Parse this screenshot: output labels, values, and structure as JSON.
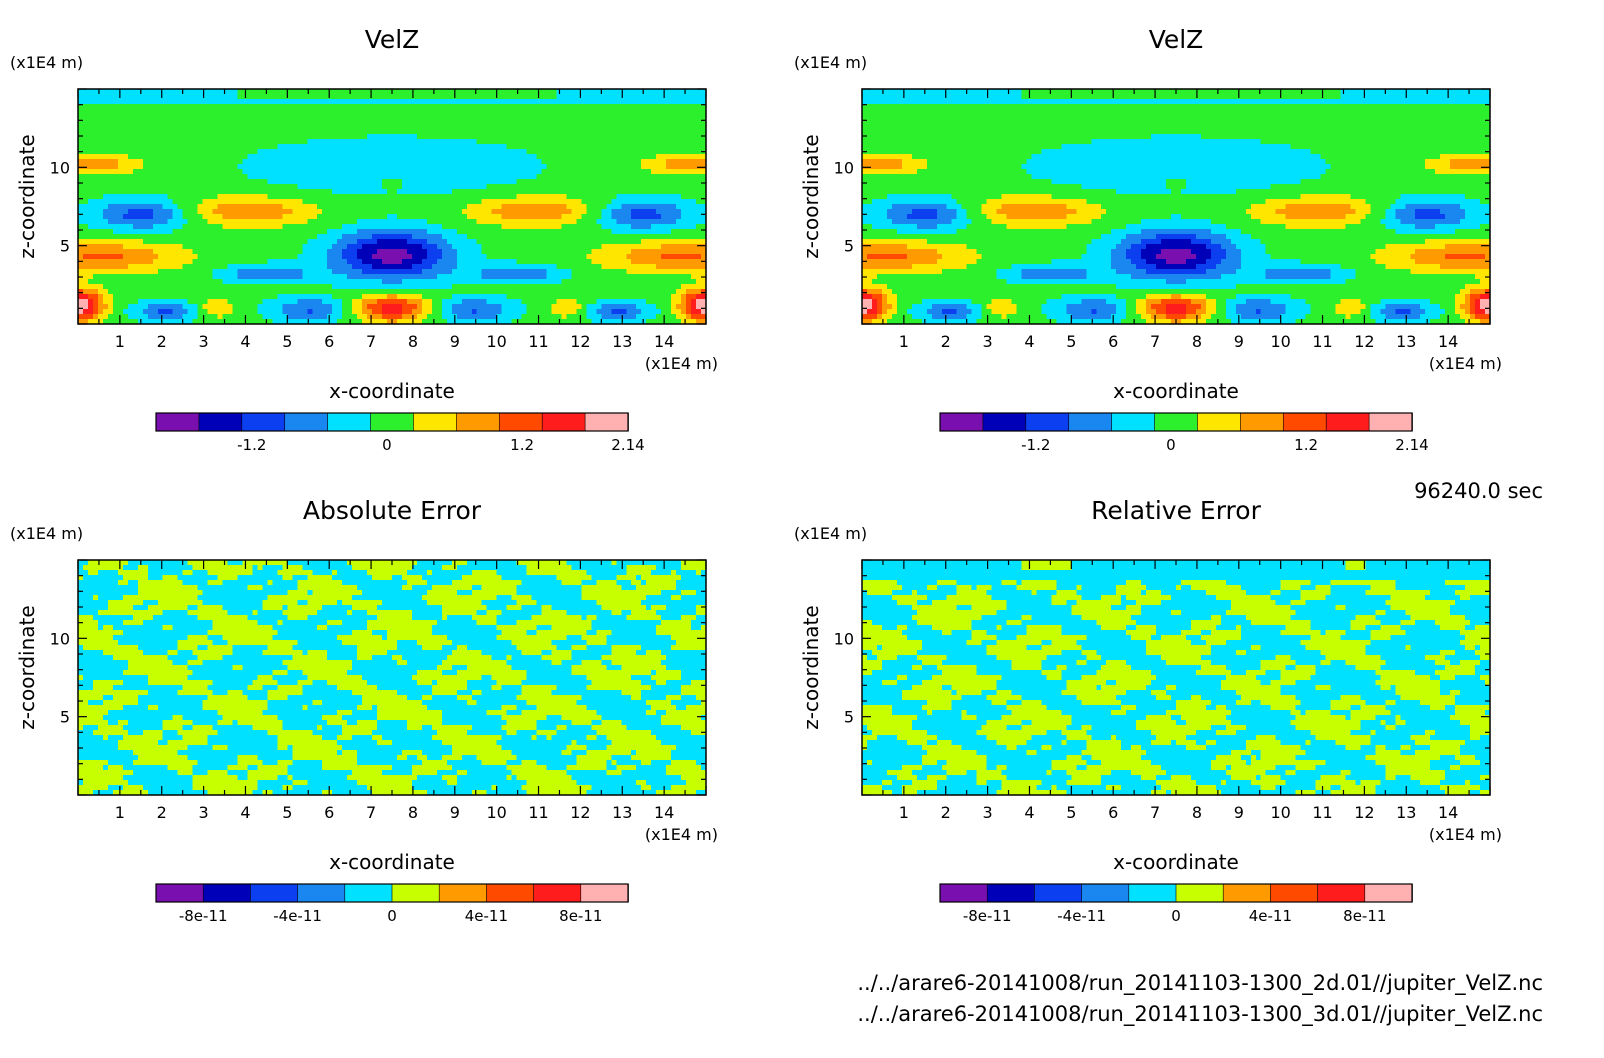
{
  "time_label": "96240.0 sec",
  "files": [
    "../../arare6-20141008/run_20141103-1300_2d.01//jupiter_VelZ.nc",
    "../../arare6-20141008/run_20141103-1300_3d.01//jupiter_VelZ.nc"
  ],
  "palettes": {
    "velz": [
      "#7a0fb0",
      "#0000b8",
      "#0b3ff0",
      "#1a86f0",
      "#00e0ff",
      "#2cf02c",
      "#ffe600",
      "#ff9a00",
      "#ff4a00",
      "#ff1c1c",
      "#ffb0b0"
    ],
    "error": [
      "#7a0fb0",
      "#0000b8",
      "#0b3ff0",
      "#1a86f0",
      "#00e0ff",
      "#c8ff00",
      "#ff9a00",
      "#ff4a00",
      "#ff1c1c",
      "#ffb0b0"
    ]
  },
  "chart_data": [
    {
      "type": "heatmap",
      "title": "VelZ",
      "xlabel": "x-coordinate",
      "ylabel": "z-coordinate",
      "x_unit": "(x1E4 m)",
      "y_unit": "(x1E4 m)",
      "xlim": [
        0,
        15
      ],
      "ylim": [
        0,
        15
      ],
      "x_ticks": [
        "1",
        "2",
        "3",
        "4",
        "5",
        "6",
        "7",
        "8",
        "9",
        "10",
        "11",
        "12",
        "13",
        "14"
      ],
      "y_ticks": [
        "5",
        "10"
      ],
      "colorbar_ticks": [
        "-1.2",
        "0",
        "1.2",
        "2.14"
      ],
      "field": "velz",
      "palette": "velz"
    },
    {
      "type": "heatmap",
      "title": "VelZ",
      "xlabel": "x-coordinate",
      "ylabel": "z-coordinate",
      "x_unit": "(x1E4 m)",
      "y_unit": "(x1E4 m)",
      "xlim": [
        0,
        15
      ],
      "ylim": [
        0,
        15
      ],
      "x_ticks": [
        "1",
        "2",
        "3",
        "4",
        "5",
        "6",
        "7",
        "8",
        "9",
        "10",
        "11",
        "12",
        "13",
        "14"
      ],
      "y_ticks": [
        "5",
        "10"
      ],
      "colorbar_ticks": [
        "-1.2",
        "0",
        "1.2",
        "2.14"
      ],
      "field": "velz",
      "palette": "velz"
    },
    {
      "type": "heatmap",
      "title": "Absolute Error",
      "xlabel": "x-coordinate",
      "ylabel": "z-coordinate",
      "x_unit": "(x1E4 m)",
      "y_unit": "(x1E4 m)",
      "xlim": [
        0,
        15
      ],
      "ylim": [
        0,
        15
      ],
      "x_ticks": [
        "1",
        "2",
        "3",
        "4",
        "5",
        "6",
        "7",
        "8",
        "9",
        "10",
        "11",
        "12",
        "13",
        "14"
      ],
      "y_ticks": [
        "5",
        "10"
      ],
      "colorbar_ticks": [
        "-8e-11",
        "-4e-11",
        "0",
        "4e-11",
        "8e-11"
      ],
      "field": "abs",
      "palette": "error"
    },
    {
      "type": "heatmap",
      "title": "Relative Error",
      "xlabel": "x-coordinate",
      "ylabel": "z-coordinate",
      "x_unit": "(x1E4 m)",
      "y_unit": "(x1E4 m)",
      "xlim": [
        0,
        15
      ],
      "ylim": [
        0,
        15
      ],
      "x_ticks": [
        "1",
        "2",
        "3",
        "4",
        "5",
        "6",
        "7",
        "8",
        "9",
        "10",
        "11",
        "12",
        "13",
        "14"
      ],
      "y_ticks": [
        "5",
        "10"
      ],
      "colorbar_ticks": [
        "-8e-11",
        "-4e-11",
        "0",
        "4e-11",
        "8e-11"
      ],
      "field": "rel",
      "palette": "error"
    }
  ]
}
